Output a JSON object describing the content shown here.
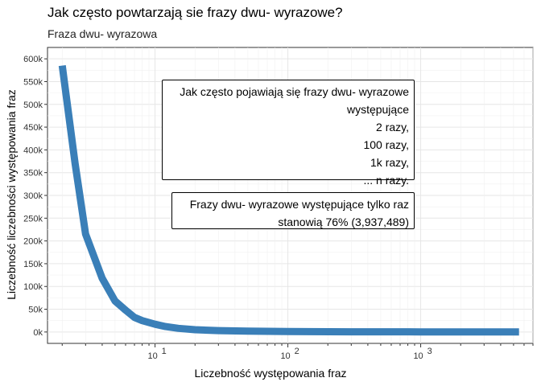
{
  "chart_data": {
    "type": "line",
    "title": "Jak często powtarzają sie frazy dwu- wyrazowe?",
    "subtitle": "Fraza dwu- wyrazowa",
    "xlabel": "Liczebność występowania fraz",
    "ylabel": "Liczebność liczebności występowania fraz",
    "x_scale": "log10",
    "xlim": [
      1.55,
      7000
    ],
    "ylim": [
      -25000,
      625000
    ],
    "y_ticks": [
      {
        "value": 0,
        "label": "0k"
      },
      {
        "value": 50000,
        "label": "50k"
      },
      {
        "value": 100000,
        "label": "100k"
      },
      {
        "value": 150000,
        "label": "150k"
      },
      {
        "value": 200000,
        "label": "200k"
      },
      {
        "value": 250000,
        "label": "250k"
      },
      {
        "value": 300000,
        "label": "300k"
      },
      {
        "value": 350000,
        "label": "350k"
      },
      {
        "value": 400000,
        "label": "400k"
      },
      {
        "value": 450000,
        "label": "450k"
      },
      {
        "value": 500000,
        "label": "500k"
      },
      {
        "value": 550000,
        "label": "550k"
      },
      {
        "value": 600000,
        "label": "600k"
      }
    ],
    "x_ticks": [
      {
        "value": 10,
        "base": "10",
        "exp": "1"
      },
      {
        "value": 100,
        "base": "10",
        "exp": "2"
      },
      {
        "value": 1000,
        "base": "10",
        "exp": "3"
      }
    ],
    "grid": true,
    "series": [
      {
        "color": "#3a7fb8",
        "x": [
          2,
          2.5,
          3,
          4,
          5,
          6,
          7,
          8,
          10,
          12,
          15,
          20,
          30,
          50,
          100,
          300,
          1000,
          3000,
          5500
        ],
        "y": [
          585000,
          370000,
          215000,
          118000,
          68000,
          48000,
          32000,
          25000,
          17000,
          12000,
          8000,
          5000,
          3000,
          1800,
          900,
          400,
          200,
          100,
          50
        ]
      }
    ],
    "annotations": [
      {
        "lines": [
          "Jak często pojawiają się frazy dwu- wyrazowe",
          "występujące",
          "2 razy,",
          "100 razy,",
          "1k razy,",
          "... n razy."
        ]
      },
      {
        "lines": [
          "Frazy dwu- wyrazowe występujące tylko raz",
          "stanowią 76% (3,937,489)"
        ]
      }
    ]
  }
}
